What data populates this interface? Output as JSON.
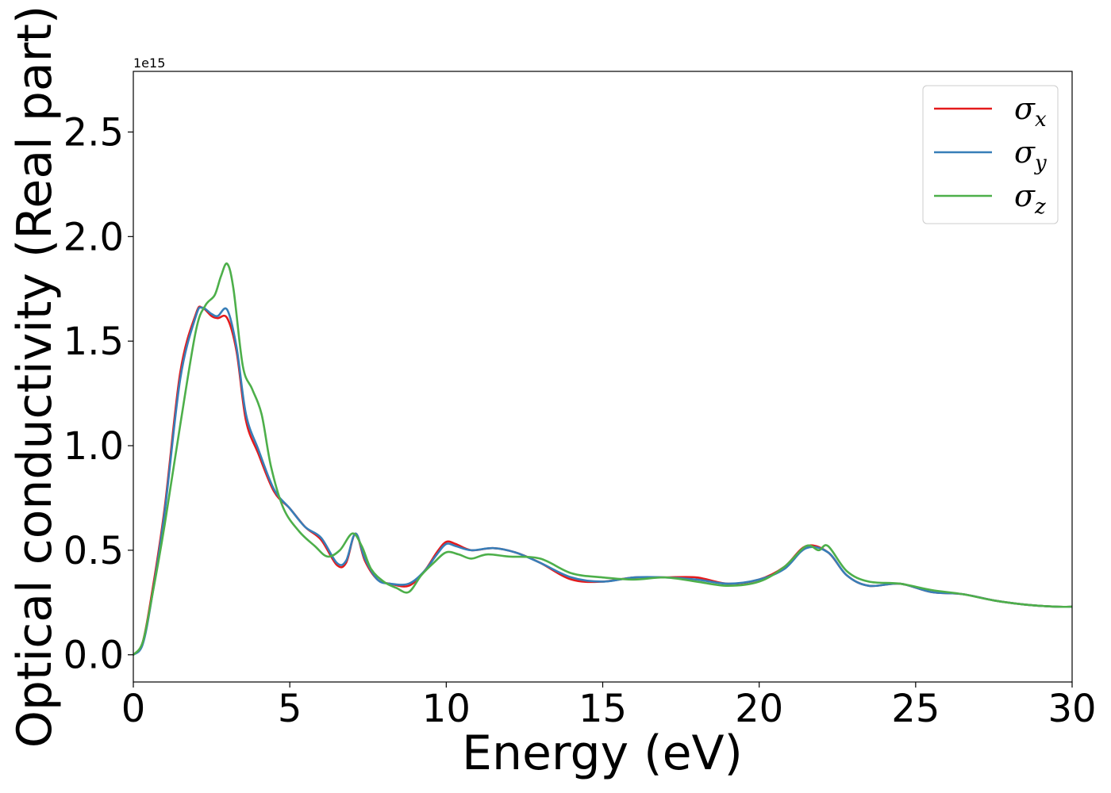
{
  "chart_data": {
    "type": "line",
    "title": "",
    "xlabel": "Energy (eV)",
    "ylabel": "Optical conductivity (Real part)",
    "y_offset_text": "1e15",
    "xlim": [
      0,
      30
    ],
    "ylim": [
      -0.13,
      2.79
    ],
    "x_ticks": [
      0,
      5,
      10,
      15,
      20,
      25,
      30
    ],
    "x_tick_labels": [
      "0",
      "5",
      "10",
      "15",
      "20",
      "25",
      "30"
    ],
    "y_ticks": [
      0.0,
      0.5,
      1.0,
      1.5,
      2.0,
      2.5
    ],
    "y_tick_labels": [
      "0.0",
      "0.5",
      "1.0",
      "1.5",
      "2.0",
      "2.5"
    ],
    "grid": false,
    "legend_position": "top-right",
    "series": [
      {
        "name": "σx",
        "symbol": "σ",
        "subscript": "x",
        "color": "#e41a1c",
        "x": [
          0,
          0.3,
          0.6,
          1.0,
          1.5,
          2.0,
          2.2,
          2.5,
          2.7,
          3.0,
          3.3,
          3.6,
          4.0,
          4.5,
          5.0,
          5.5,
          6.0,
          6.5,
          6.8,
          7.1,
          7.4,
          7.8,
          8.2,
          8.8,
          9.3,
          9.7,
          10.0,
          10.3,
          10.8,
          11.5,
          12.2,
          13.0,
          14.0,
          15.0,
          16.0,
          17.0,
          18.0,
          19.0,
          20.0,
          20.8,
          21.5,
          22.2,
          22.8,
          23.5,
          24.5,
          25.5,
          26.5,
          27.5,
          28.5,
          29.5,
          30.0
        ],
        "y": [
          0.0,
          0.06,
          0.3,
          0.7,
          1.35,
          1.63,
          1.66,
          1.62,
          1.61,
          1.61,
          1.45,
          1.12,
          0.96,
          0.78,
          0.7,
          0.61,
          0.55,
          0.43,
          0.44,
          0.58,
          0.45,
          0.36,
          0.34,
          0.33,
          0.4,
          0.49,
          0.54,
          0.53,
          0.5,
          0.51,
          0.49,
          0.44,
          0.36,
          0.35,
          0.37,
          0.37,
          0.37,
          0.34,
          0.36,
          0.42,
          0.52,
          0.49,
          0.38,
          0.33,
          0.34,
          0.3,
          0.29,
          0.26,
          0.24,
          0.23,
          0.23
        ]
      },
      {
        "name": "σy",
        "symbol": "σ",
        "subscript": "y",
        "color": "#377eb8",
        "x": [
          0,
          0.3,
          0.6,
          1.0,
          1.5,
          2.0,
          2.2,
          2.5,
          2.7,
          3.0,
          3.3,
          3.6,
          4.0,
          4.5,
          5.0,
          5.5,
          6.0,
          6.5,
          6.8,
          7.1,
          7.4,
          7.8,
          8.2,
          8.8,
          9.3,
          9.7,
          10.0,
          10.3,
          10.8,
          11.5,
          12.2,
          13.0,
          14.0,
          15.0,
          16.0,
          17.0,
          18.0,
          19.0,
          20.0,
          20.8,
          21.5,
          22.2,
          22.8,
          23.5,
          24.5,
          25.5,
          26.5,
          27.5,
          28.5,
          29.5,
          30.0
        ],
        "y": [
          0.0,
          0.05,
          0.28,
          0.68,
          1.32,
          1.62,
          1.66,
          1.63,
          1.62,
          1.65,
          1.47,
          1.15,
          0.98,
          0.79,
          0.7,
          0.61,
          0.56,
          0.44,
          0.45,
          0.58,
          0.46,
          0.36,
          0.34,
          0.34,
          0.4,
          0.48,
          0.53,
          0.52,
          0.5,
          0.51,
          0.49,
          0.44,
          0.37,
          0.35,
          0.37,
          0.37,
          0.36,
          0.34,
          0.36,
          0.41,
          0.51,
          0.49,
          0.38,
          0.33,
          0.34,
          0.3,
          0.29,
          0.26,
          0.24,
          0.23,
          0.23
        ]
      },
      {
        "name": "σz",
        "symbol": "σ",
        "subscript": "z",
        "color": "#4daf4a",
        "x": [
          0,
          0.3,
          0.6,
          1.0,
          1.5,
          2.0,
          2.3,
          2.6,
          2.8,
          3.0,
          3.2,
          3.5,
          3.8,
          4.1,
          4.4,
          4.8,
          5.3,
          5.8,
          6.2,
          6.6,
          7.0,
          7.3,
          7.6,
          8.0,
          8.4,
          8.8,
          9.2,
          9.6,
          10.0,
          10.4,
          10.8,
          11.3,
          12.0,
          13.0,
          14.0,
          15.0,
          16.0,
          17.0,
          18.0,
          19.0,
          20.0,
          20.8,
          21.5,
          21.9,
          22.2,
          22.8,
          23.5,
          24.5,
          25.5,
          26.5,
          27.5,
          28.5,
          29.5,
          30.0
        ],
        "y": [
          0.0,
          0.06,
          0.28,
          0.62,
          1.1,
          1.55,
          1.67,
          1.72,
          1.81,
          1.87,
          1.75,
          1.38,
          1.27,
          1.15,
          0.9,
          0.7,
          0.59,
          0.52,
          0.47,
          0.5,
          0.58,
          0.52,
          0.41,
          0.35,
          0.32,
          0.3,
          0.38,
          0.44,
          0.49,
          0.48,
          0.46,
          0.48,
          0.47,
          0.46,
          0.39,
          0.37,
          0.36,
          0.37,
          0.35,
          0.33,
          0.35,
          0.42,
          0.52,
          0.5,
          0.52,
          0.4,
          0.35,
          0.34,
          0.31,
          0.29,
          0.26,
          0.24,
          0.23,
          0.23
        ]
      }
    ]
  }
}
